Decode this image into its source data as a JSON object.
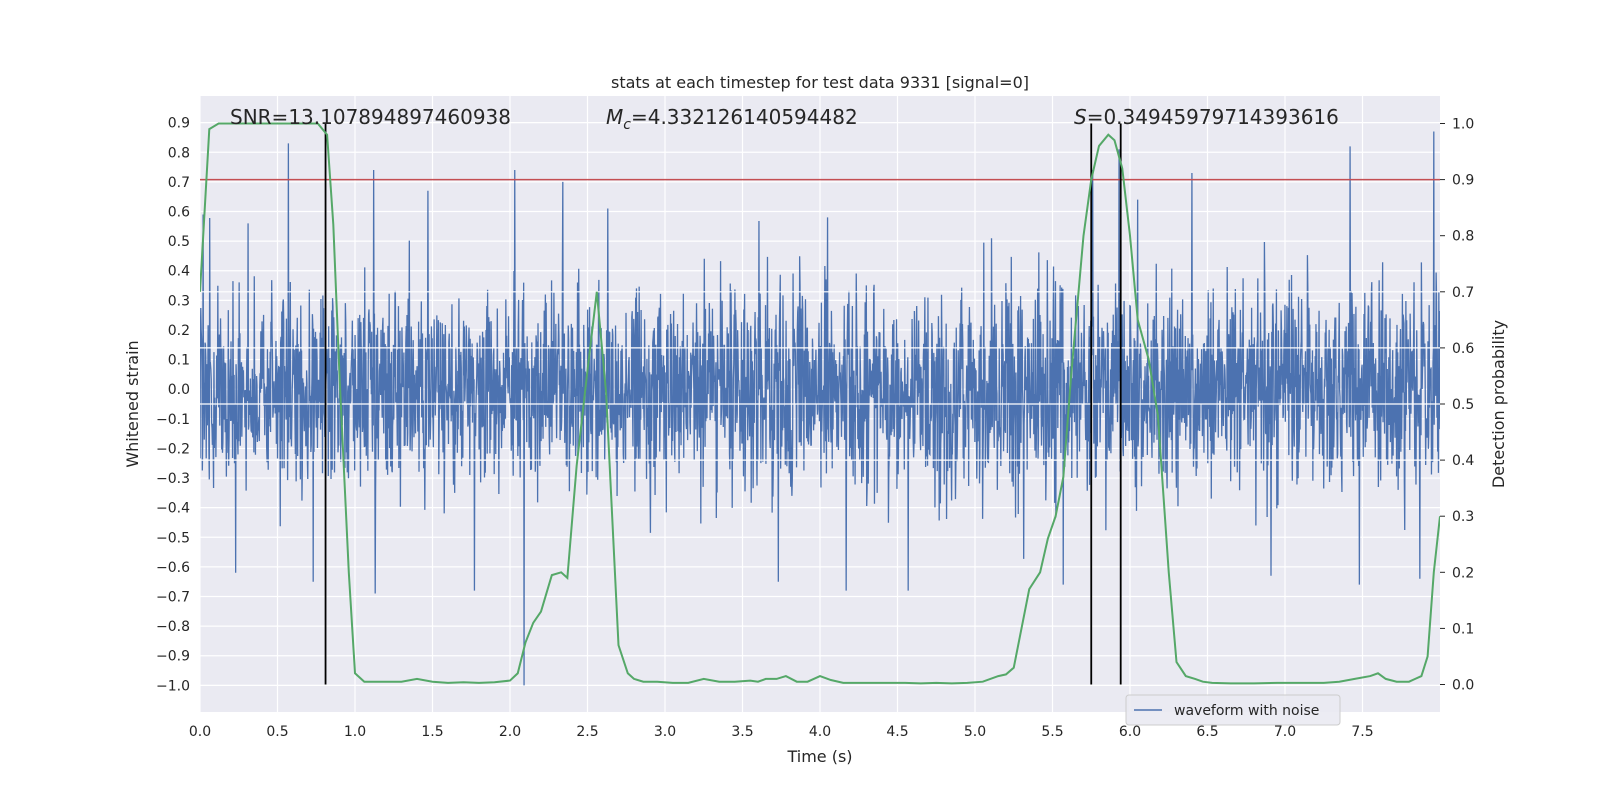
{
  "chart_data": {
    "type": "line",
    "title": "stats at each timestep for test data 9331 [signal=0]",
    "xlabel": "Time (s)",
    "ylabel": "Whitened strain",
    "y2label": "Detection probability",
    "xlim": [
      0.0,
      8.0
    ],
    "ylim": [
      -1.09,
      0.99
    ],
    "y2lim": [
      -0.049,
      1.049
    ],
    "grid": true,
    "x_ticks": [
      "0.0",
      "0.5",
      "1.0",
      "1.5",
      "2.0",
      "2.5",
      "3.0",
      "3.5",
      "4.0",
      "4.5",
      "5.0",
      "5.5",
      "6.0",
      "6.5",
      "7.0",
      "7.5"
    ],
    "y_ticks": [
      "−1.0",
      "−0.9",
      "−0.8",
      "−0.7",
      "−0.6",
      "−0.5",
      "−0.4",
      "−0.3",
      "−0.2",
      "−0.1",
      "0.0",
      "0.1",
      "0.2",
      "0.3",
      "0.4",
      "0.5",
      "0.6",
      "0.7",
      "0.8",
      "0.9"
    ],
    "y2_ticks": [
      "0.0",
      "0.1",
      "0.2",
      "0.3",
      "0.4",
      "0.5",
      "0.6",
      "0.7",
      "0.8",
      "0.9",
      "1.0"
    ],
    "annotations": {
      "snr_prefix": "SNR=",
      "snr_value": "13.107894897460938",
      "mc_symbol": "M",
      "mc_subscript": "c",
      "mc_value": "=4.332126140594482",
      "s_symbol": "S",
      "s_value": "=0.34945979714393616"
    },
    "legend": {
      "position": "lower-right",
      "entries": [
        "waveform with noise"
      ]
    },
    "threshold": {
      "probability": 0.9,
      "color": "#c44e52"
    },
    "vertical_markers": [
      0.81,
      5.75,
      5.94
    ],
    "waveform": {
      "name": "waveform with noise",
      "color": "#4c72b0",
      "duration_s": 8.0,
      "spikes": [
        {
          "x": 0.02,
          "y": 0.59
        },
        {
          "x": 0.57,
          "y": 0.83
        },
        {
          "x": 1.12,
          "y": 0.74
        },
        {
          "x": 1.47,
          "y": 0.67
        },
        {
          "x": 2.03,
          "y": 0.74
        },
        {
          "x": 2.34,
          "y": 0.7
        },
        {
          "x": 5.76,
          "y": 0.74
        },
        {
          "x": 5.93,
          "y": 0.81
        },
        {
          "x": 6.4,
          "y": 0.73
        },
        {
          "x": 7.42,
          "y": 0.82
        },
        {
          "x": 7.96,
          "y": 0.87
        },
        {
          "x": 0.31,
          "y": 0.56
        },
        {
          "x": 2.63,
          "y": 0.61
        },
        {
          "x": 4.05,
          "y": 0.58
        },
        {
          "x": 6.05,
          "y": 0.64
        },
        {
          "x": 0.73,
          "y": -0.65
        },
        {
          "x": 1.13,
          "y": -0.69
        },
        {
          "x": 1.77,
          "y": -0.68
        },
        {
          "x": 2.09,
          "y": -1.0
        },
        {
          "x": 3.73,
          "y": -0.65
        },
        {
          "x": 4.17,
          "y": -0.68
        },
        {
          "x": 4.57,
          "y": -0.68
        },
        {
          "x": 5.57,
          "y": -0.66
        },
        {
          "x": 7.48,
          "y": -0.66
        },
        {
          "x": 7.87,
          "y": -0.64
        },
        {
          "x": 0.23,
          "y": -0.62
        },
        {
          "x": 6.91,
          "y": -0.63
        }
      ]
    },
    "series": [
      {
        "name": "detection probability",
        "color": "#55a868",
        "x": [
          0.0,
          0.06,
          0.12,
          0.2,
          0.3,
          0.4,
          0.5,
          0.6,
          0.7,
          0.76,
          0.82,
          0.86,
          0.9,
          0.96,
          1.0,
          1.06,
          1.1,
          1.2,
          1.3,
          1.4,
          1.5,
          1.6,
          1.7,
          1.8,
          1.9,
          2.0,
          2.05,
          2.1,
          2.15,
          2.2,
          2.27,
          2.33,
          2.37,
          2.43,
          2.5,
          2.56,
          2.62,
          2.7,
          2.76,
          2.8,
          2.86,
          2.95,
          3.05,
          3.15,
          3.25,
          3.35,
          3.45,
          3.55,
          3.6,
          3.65,
          3.72,
          3.78,
          3.85,
          3.92,
          4.0,
          4.07,
          4.15,
          4.25,
          4.35,
          4.45,
          4.55,
          4.65,
          4.75,
          4.85,
          4.95,
          5.05,
          5.15,
          5.2,
          5.25,
          5.3,
          5.35,
          5.42,
          5.47,
          5.52,
          5.57,
          5.62,
          5.7,
          5.75,
          5.8,
          5.86,
          5.9,
          5.95,
          6.0,
          6.05,
          6.12,
          6.18,
          6.25,
          6.3,
          6.36,
          6.42,
          6.47,
          6.53,
          6.65,
          6.8,
          6.95,
          7.1,
          7.25,
          7.35,
          7.45,
          7.55,
          7.6,
          7.65,
          7.72,
          7.8,
          7.84,
          7.88,
          7.92,
          7.96,
          8.0
        ],
        "y": [
          0.7,
          0.99,
          1.0,
          1.0,
          1.0,
          1.0,
          1.0,
          1.0,
          1.0,
          1.0,
          0.98,
          0.82,
          0.55,
          0.2,
          0.02,
          0.005,
          0.005,
          0.005,
          0.005,
          0.01,
          0.005,
          0.003,
          0.004,
          0.003,
          0.004,
          0.007,
          0.02,
          0.075,
          0.11,
          0.13,
          0.195,
          0.2,
          0.19,
          0.39,
          0.56,
          0.7,
          0.52,
          0.07,
          0.02,
          0.01,
          0.005,
          0.005,
          0.003,
          0.003,
          0.01,
          0.005,
          0.005,
          0.007,
          0.005,
          0.01,
          0.01,
          0.015,
          0.005,
          0.005,
          0.015,
          0.008,
          0.003,
          0.003,
          0.003,
          0.003,
          0.003,
          0.002,
          0.003,
          0.002,
          0.003,
          0.005,
          0.015,
          0.018,
          0.03,
          0.1,
          0.17,
          0.2,
          0.26,
          0.3,
          0.37,
          0.55,
          0.8,
          0.9,
          0.96,
          0.98,
          0.97,
          0.92,
          0.8,
          0.65,
          0.58,
          0.48,
          0.2,
          0.04,
          0.015,
          0.01,
          0.005,
          0.003,
          0.002,
          0.002,
          0.003,
          0.003,
          0.003,
          0.005,
          0.01,
          0.015,
          0.02,
          0.01,
          0.005,
          0.005,
          0.01,
          0.015,
          0.05,
          0.2,
          0.3
        ]
      }
    ]
  }
}
